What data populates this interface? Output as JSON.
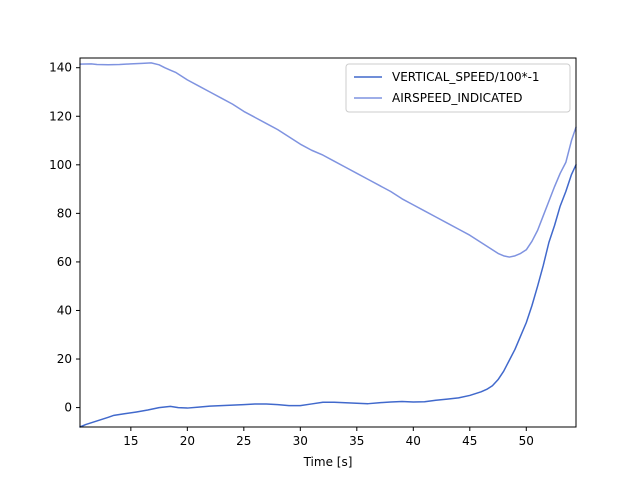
{
  "chart_data": {
    "type": "line",
    "title": "",
    "xlabel": "Time [s]",
    "ylabel": "",
    "xlim": [
      10.5,
      54.4
    ],
    "ylim": [
      -8,
      144
    ],
    "xticks": [
      15,
      20,
      25,
      30,
      35,
      40,
      45,
      50
    ],
    "yticks": [
      0,
      20,
      40,
      60,
      80,
      100,
      120,
      140
    ],
    "grid": false,
    "legend_position": "top-right",
    "series": [
      {
        "name": "VERTICAL_SPEED/100*-1",
        "color": "#4169cc",
        "points": [
          [
            10.5,
            -8.0
          ],
          [
            11.0,
            -7.0
          ],
          [
            12.0,
            -5.5
          ],
          [
            13.0,
            -4.0
          ],
          [
            13.5,
            -3.2
          ],
          [
            14.5,
            -2.5
          ],
          [
            15.5,
            -1.8
          ],
          [
            16.5,
            -1.0
          ],
          [
            17.5,
            0.0
          ],
          [
            18.5,
            0.5
          ],
          [
            19.2,
            0.0
          ],
          [
            20.0,
            -0.2
          ],
          [
            21.0,
            0.2
          ],
          [
            22.0,
            0.6
          ],
          [
            23.0,
            0.8
          ],
          [
            24.0,
            1.0
          ],
          [
            25.0,
            1.2
          ],
          [
            26.0,
            1.5
          ],
          [
            27.0,
            1.5
          ],
          [
            28.0,
            1.2
          ],
          [
            29.0,
            0.8
          ],
          [
            30.0,
            0.8
          ],
          [
            31.0,
            1.5
          ],
          [
            32.0,
            2.2
          ],
          [
            33.0,
            2.2
          ],
          [
            34.0,
            2.0
          ],
          [
            35.0,
            1.8
          ],
          [
            36.0,
            1.6
          ],
          [
            37.0,
            2.0
          ],
          [
            38.0,
            2.3
          ],
          [
            39.0,
            2.5
          ],
          [
            40.0,
            2.3
          ],
          [
            41.0,
            2.4
          ],
          [
            42.0,
            3.0
          ],
          [
            43.0,
            3.5
          ],
          [
            44.0,
            4.0
          ],
          [
            45.0,
            5.0
          ],
          [
            46.0,
            6.5
          ],
          [
            46.5,
            7.5
          ],
          [
            47.0,
            9.0
          ],
          [
            47.5,
            11.5
          ],
          [
            48.0,
            15.0
          ],
          [
            48.5,
            19.5
          ],
          [
            49.0,
            24.0
          ],
          [
            49.5,
            29.5
          ],
          [
            50.0,
            35.0
          ],
          [
            50.5,
            42.0
          ],
          [
            51.0,
            50.0
          ],
          [
            51.5,
            58.5
          ],
          [
            52.0,
            68.0
          ],
          [
            52.5,
            75.0
          ],
          [
            53.0,
            83.0
          ],
          [
            53.5,
            89.0
          ],
          [
            54.0,
            96.0
          ],
          [
            54.4,
            100.0
          ]
        ]
      },
      {
        "name": "AIRSPEED_INDICATED",
        "color": "#7f93e0",
        "points": [
          [
            10.5,
            141.5
          ],
          [
            11.5,
            141.6
          ],
          [
            12.0,
            141.3
          ],
          [
            13.0,
            141.2
          ],
          [
            14.0,
            141.3
          ],
          [
            15.0,
            141.6
          ],
          [
            16.0,
            141.8
          ],
          [
            16.8,
            142.0
          ],
          [
            17.5,
            141.2
          ],
          [
            18.0,
            140.0
          ],
          [
            18.5,
            139.0
          ],
          [
            19.0,
            138.0
          ],
          [
            19.5,
            136.5
          ],
          [
            20.0,
            135.0
          ],
          [
            21.0,
            132.5
          ],
          [
            22.0,
            130.0
          ],
          [
            23.0,
            127.5
          ],
          [
            24.0,
            125.0
          ],
          [
            25.0,
            122.0
          ],
          [
            26.0,
            119.5
          ],
          [
            27.0,
            117.0
          ],
          [
            28.0,
            114.5
          ],
          [
            29.0,
            111.5
          ],
          [
            30.0,
            108.5
          ],
          [
            31.0,
            106.0
          ],
          [
            32.0,
            104.0
          ],
          [
            33.0,
            101.5
          ],
          [
            34.0,
            99.0
          ],
          [
            35.0,
            96.5
          ],
          [
            36.0,
            94.0
          ],
          [
            37.0,
            91.5
          ],
          [
            38.0,
            89.0
          ],
          [
            39.0,
            86.0
          ],
          [
            40.0,
            83.5
          ],
          [
            41.0,
            81.0
          ],
          [
            42.0,
            78.5
          ],
          [
            43.0,
            76.0
          ],
          [
            44.0,
            73.5
          ],
          [
            45.0,
            71.0
          ],
          [
            46.0,
            68.0
          ],
          [
            47.0,
            65.0
          ],
          [
            47.5,
            63.5
          ],
          [
            48.0,
            62.5
          ],
          [
            48.5,
            62.0
          ],
          [
            49.0,
            62.5
          ],
          [
            49.5,
            63.5
          ],
          [
            50.0,
            65.0
          ],
          [
            50.5,
            68.5
          ],
          [
            51.0,
            73.0
          ],
          [
            51.5,
            79.0
          ],
          [
            52.0,
            85.0
          ],
          [
            52.5,
            91.0
          ],
          [
            53.0,
            96.5
          ],
          [
            53.5,
            101.0
          ],
          [
            54.0,
            110.0
          ],
          [
            54.4,
            115.5
          ]
        ]
      }
    ]
  }
}
